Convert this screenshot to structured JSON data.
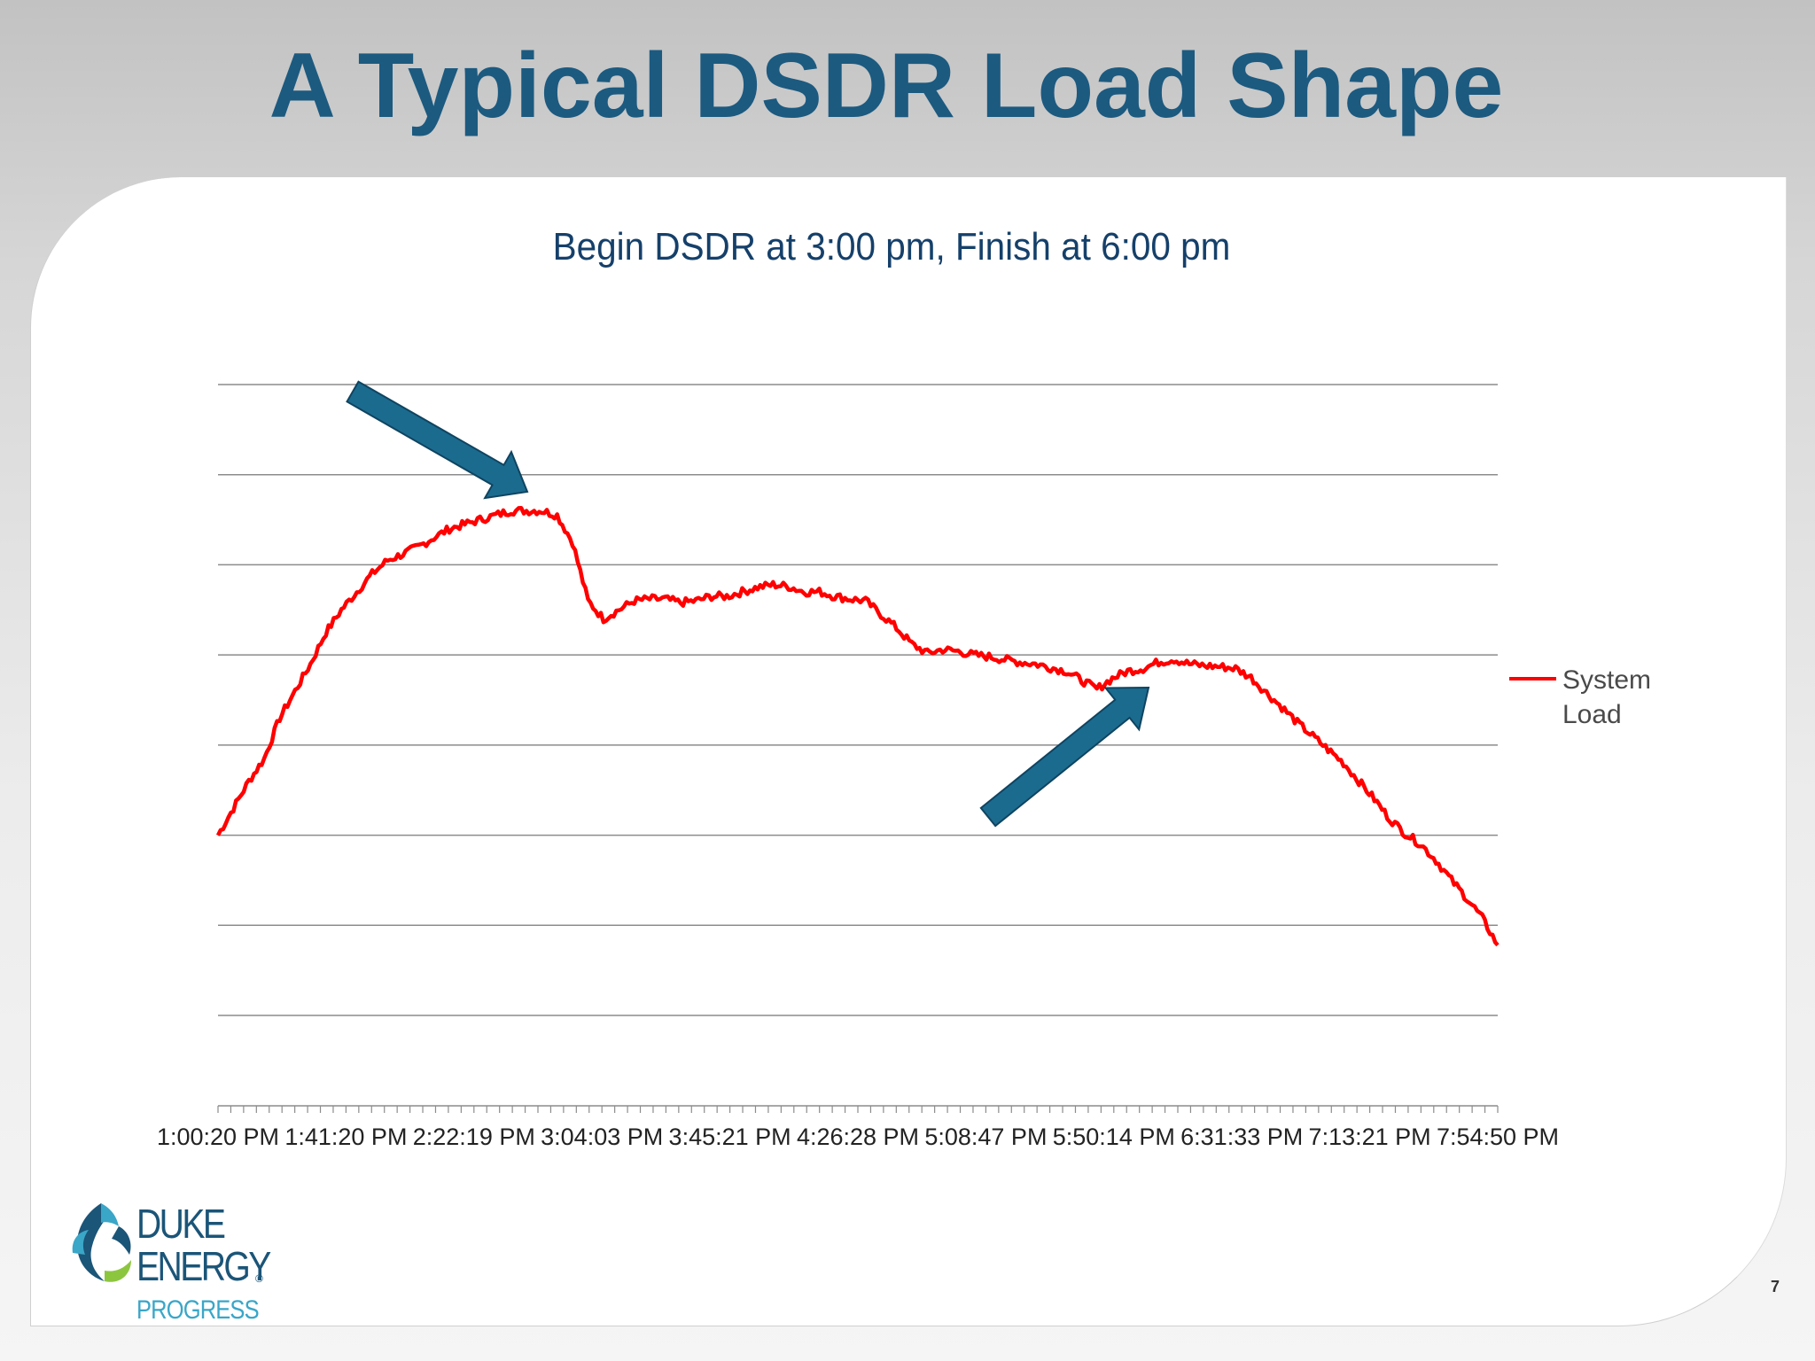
{
  "slide": {
    "title": "A Typical DSDR Load Shape",
    "page_number": "7"
  },
  "logo": {
    "line1": "DUKE",
    "line2": "ENERGY",
    "registered": "®",
    "line3": "PROGRESS"
  },
  "colors": {
    "title": "#1c5a80",
    "series": "#ff0000",
    "arrow": "#1b6b8f",
    "gridline": "#8c8c8c"
  },
  "chart_data": {
    "type": "line",
    "title": "Begin DSDR at 3:00 pm, Finish at 6:00 pm",
    "xlabel": "",
    "ylabel": "",
    "x_tick_labels": [
      "1:00:20 PM",
      "1:41:20 PM",
      "2:22:19 PM",
      "3:04:03 PM",
      "3:45:21 PM",
      "4:26:28 PM",
      "5:08:47 PM",
      "5:50:14 PM",
      "6:31:33 PM",
      "7:13:21 PM",
      "7:54:50 PM"
    ],
    "x_range_minutes_after_1pm": [
      0.33,
      414.83
    ],
    "y_tick_labels": [],
    "ylim": [
      0,
      7
    ],
    "gridlines": 8,
    "grid": true,
    "legend": {
      "position": "right",
      "entries": [
        "System Load"
      ]
    },
    "annotations": [
      {
        "type": "arrow",
        "points_to": "3:00 pm peak"
      },
      {
        "type": "arrow",
        "points_to": "6:00 pm"
      }
    ],
    "series": [
      {
        "name": "System Load",
        "x_minutes": [
          0,
          5,
          10,
          15,
          20,
          25,
          30,
          35,
          40,
          45,
          50,
          55,
          60,
          65,
          70,
          75,
          80,
          85,
          90,
          95,
          100,
          105,
          110,
          115,
          120,
          125,
          130,
          135,
          140,
          145,
          150,
          155,
          160,
          165,
          170,
          175,
          180,
          185,
          190,
          195,
          200,
          205,
          210,
          215,
          220,
          225,
          230,
          235,
          240,
          245,
          250,
          255,
          260,
          265,
          270,
          275,
          280,
          285,
          290,
          295,
          300,
          305,
          310,
          315,
          320,
          325,
          330,
          335,
          340,
          345,
          350,
          355,
          360,
          365,
          370,
          375,
          380,
          385,
          390,
          395,
          400,
          405,
          410,
          415
        ],
        "values": [
          2.0,
          2.3,
          2.6,
          2.85,
          3.3,
          3.6,
          3.9,
          4.25,
          4.5,
          4.7,
          4.9,
          5.05,
          5.12,
          5.2,
          5.3,
          5.4,
          5.45,
          5.5,
          5.55,
          5.6,
          5.6,
          5.6,
          5.55,
          5.25,
          4.6,
          4.4,
          4.5,
          4.6,
          4.62,
          4.62,
          4.58,
          4.6,
          4.65,
          4.65,
          4.7,
          4.75,
          4.78,
          4.76,
          4.7,
          4.7,
          4.65,
          4.62,
          4.6,
          4.45,
          4.3,
          4.12,
          4.02,
          4.06,
          4.04,
          4.0,
          3.98,
          3.95,
          3.92,
          3.9,
          3.86,
          3.82,
          3.72,
          3.62,
          3.74,
          3.82,
          3.85,
          3.92,
          3.95,
          3.9,
          3.88,
          3.87,
          3.85,
          3.75,
          3.58,
          3.42,
          3.25,
          3.1,
          2.95,
          2.8,
          2.6,
          2.4,
          2.18,
          2.02,
          1.9,
          1.72,
          1.5,
          1.3,
          1.08,
          0.78
        ]
      }
    ]
  }
}
